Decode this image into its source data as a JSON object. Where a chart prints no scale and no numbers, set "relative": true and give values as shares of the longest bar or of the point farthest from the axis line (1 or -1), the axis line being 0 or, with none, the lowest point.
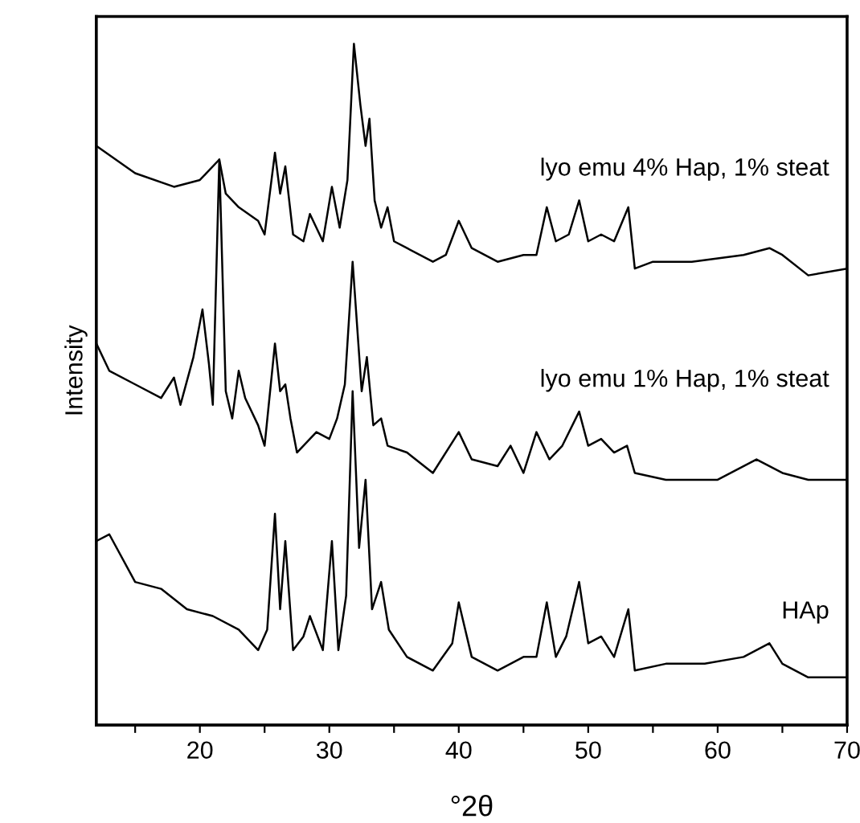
{
  "chart_data": {
    "type": "line",
    "xlabel": "°2θ",
    "ylabel": "Intensity",
    "relative": true,
    "grid": false,
    "legend": false,
    "marker": "none",
    "line_style": "solid",
    "xlim": [
      12,
      70
    ],
    "xticks": [
      {
        "value": 15,
        "label": null
      },
      20,
      {
        "value": 25,
        "label": null
      },
      30,
      {
        "value": 35,
        "label": null
      },
      40,
      {
        "value": 45,
        "label": null
      },
      50,
      {
        "value": 55,
        "label": null
      },
      60,
      {
        "value": 65,
        "label": null
      },
      70
    ],
    "series": [
      {
        "name": "lyo emu 4% Hap, 1% steat",
        "color": "#000000",
        "x": [
          12,
          15,
          18,
          20,
          21.5,
          22,
          23,
          24.5,
          25,
          25.8,
          26.2,
          26.6,
          27.2,
          28,
          28.5,
          29.5,
          30.2,
          30.8,
          31.4,
          31.9,
          32.4,
          32.8,
          33.1,
          33.5,
          34,
          34.5,
          35,
          36,
          38,
          39,
          40,
          41,
          43,
          45,
          46,
          46.8,
          47.5,
          48.5,
          49.3,
          50,
          51,
          52,
          53.1,
          53.6,
          55,
          58,
          62,
          64,
          65,
          67,
          70
        ],
        "values": [
          0.85,
          0.81,
          0.79,
          0.8,
          0.83,
          0.78,
          0.76,
          0.74,
          0.72,
          0.84,
          0.78,
          0.82,
          0.72,
          0.71,
          0.75,
          0.71,
          0.79,
          0.73,
          0.8,
          1.0,
          0.91,
          0.85,
          0.89,
          0.77,
          0.73,
          0.76,
          0.71,
          0.7,
          0.68,
          0.69,
          0.74,
          0.7,
          0.68,
          0.69,
          0.69,
          0.76,
          0.71,
          0.72,
          0.77,
          0.71,
          0.72,
          0.71,
          0.76,
          0.67,
          0.68,
          0.68,
          0.69,
          0.7,
          0.69,
          0.66,
          0.67
        ]
      },
      {
        "name": "lyo emu 1% Hap, 1% steat",
        "color": "#000000",
        "x": [
          12,
          13,
          15,
          17,
          18,
          18.5,
          19.5,
          20.2,
          20.7,
          21,
          21.5,
          22,
          22.5,
          23,
          23.5,
          24.5,
          25,
          25.8,
          26.2,
          26.6,
          27,
          27.5,
          29,
          30,
          30.6,
          31.2,
          31.8,
          32.5,
          32.9,
          33.4,
          34,
          34.5,
          36,
          38,
          40,
          41,
          43,
          44,
          45,
          46,
          47,
          48,
          49.3,
          50,
          51,
          52,
          53,
          53.6,
          56,
          60,
          63,
          65,
          67,
          70
        ],
        "values": [
          0.56,
          0.52,
          0.5,
          0.48,
          0.51,
          0.47,
          0.54,
          0.61,
          0.53,
          0.47,
          0.83,
          0.49,
          0.45,
          0.52,
          0.48,
          0.44,
          0.41,
          0.56,
          0.49,
          0.5,
          0.45,
          0.4,
          0.43,
          0.42,
          0.45,
          0.5,
          0.68,
          0.49,
          0.54,
          0.44,
          0.45,
          0.41,
          0.4,
          0.37,
          0.43,
          0.39,
          0.38,
          0.41,
          0.37,
          0.43,
          0.39,
          0.41,
          0.46,
          0.41,
          0.42,
          0.4,
          0.41,
          0.37,
          0.36,
          0.36,
          0.39,
          0.37,
          0.36,
          0.36
        ]
      },
      {
        "name": "HAp",
        "color": "#000000",
        "x": [
          12,
          13,
          15,
          17,
          19,
          21,
          23,
          24.5,
          25.2,
          25.8,
          26.2,
          26.6,
          27.2,
          28,
          28.5,
          29.5,
          30.2,
          30.7,
          31.3,
          31.8,
          32.3,
          32.8,
          33.3,
          34,
          34.6,
          36,
          38,
          39.5,
          40,
          41,
          43,
          45,
          46,
          46.8,
          47.5,
          48.3,
          49.3,
          50,
          51,
          52,
          53.1,
          53.6,
          56,
          59,
          62,
          64,
          65,
          67,
          70
        ],
        "values": [
          0.27,
          0.28,
          0.21,
          0.2,
          0.17,
          0.16,
          0.14,
          0.11,
          0.14,
          0.31,
          0.17,
          0.27,
          0.11,
          0.13,
          0.16,
          0.11,
          0.27,
          0.11,
          0.19,
          0.49,
          0.26,
          0.36,
          0.17,
          0.21,
          0.14,
          0.1,
          0.08,
          0.12,
          0.18,
          0.1,
          0.08,
          0.1,
          0.1,
          0.18,
          0.1,
          0.13,
          0.21,
          0.12,
          0.13,
          0.1,
          0.17,
          0.08,
          0.09,
          0.09,
          0.1,
          0.12,
          0.09,
          0.07,
          0.07
        ]
      }
    ]
  }
}
